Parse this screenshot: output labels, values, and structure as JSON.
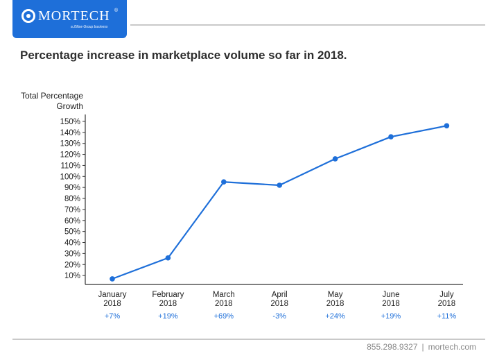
{
  "brand": {
    "logo_text": "MORTECH",
    "registered_mark": "®",
    "tagline": "a Zillow Group business"
  },
  "title": "Percentage increase in marketplace volume so far in 2018.",
  "footer": {
    "phone": "855.298.9327",
    "separator": "|",
    "website": "mortech.com"
  },
  "colors": {
    "brand_blue": "#1e6fd9",
    "line": "#1e6fd9",
    "axis": "#333333"
  },
  "chart_data": {
    "type": "line",
    "title": "Percentage increase in marketplace volume so far in 2018.",
    "ylabel_lines": [
      "Total Percentage",
      "Growth"
    ],
    "ylim": [
      0,
      150
    ],
    "yticks": [
      10,
      20,
      30,
      40,
      50,
      60,
      70,
      80,
      90,
      100,
      110,
      120,
      130,
      140,
      150
    ],
    "ytick_labels": [
      "10%",
      "20%",
      "30%",
      "40%",
      "50%",
      "60%",
      "70%",
      "80%",
      "90%",
      "100%",
      "110%",
      "120%",
      "130%",
      "140%",
      "150%"
    ],
    "grid": false,
    "categories": [
      [
        "January",
        "2018"
      ],
      [
        "February",
        "2018"
      ],
      [
        "March",
        "2018"
      ],
      [
        "April",
        "2018"
      ],
      [
        "May",
        "2018"
      ],
      [
        "June",
        "2018"
      ],
      [
        "July",
        "2018"
      ]
    ],
    "series": [
      {
        "values": [
          7,
          26,
          95,
          92,
          116,
          136,
          146
        ]
      }
    ],
    "monthly_change_labels": [
      "+7%",
      "+19%",
      "+69%",
      "-3%",
      "+24%",
      "+19%",
      "+11%"
    ]
  }
}
